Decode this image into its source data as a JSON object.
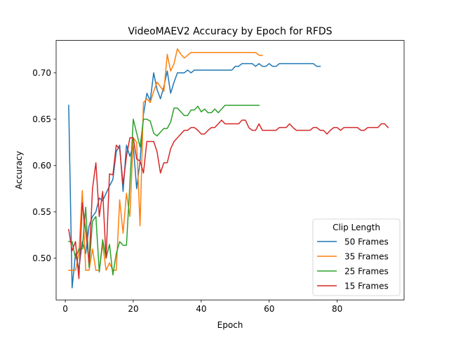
{
  "chart_data": {
    "type": "line",
    "title": "VideoMAEV2 Accuracy by Epoch for RFDS",
    "xlabel": "Epoch",
    "ylabel": "Accuracy",
    "xlim": [
      -2.7,
      99.7
    ],
    "ylim": [
      0.455,
      0.735
    ],
    "xticks": [
      0,
      20,
      40,
      60,
      80
    ],
    "yticks": [
      0.5,
      0.55,
      0.6,
      0.65,
      0.7
    ],
    "ytick_labels": [
      "0.50",
      "0.55",
      "0.60",
      "0.65",
      "0.70"
    ],
    "grid": false,
    "legend": {
      "title": "Clip Length",
      "placement": "lower-right"
    },
    "series": [
      {
        "name": "50 Frames",
        "color": "#1f77b4",
        "x": [
          1,
          2,
          3,
          4,
          5,
          6,
          7,
          8,
          9,
          10,
          11,
          12,
          13,
          14,
          15,
          16,
          17,
          18,
          19,
          20,
          21,
          22,
          23,
          24,
          25,
          26,
          27,
          28,
          29,
          30,
          31,
          32,
          33,
          34,
          35,
          36,
          37,
          38,
          39,
          40,
          41,
          42,
          43,
          44,
          45,
          46,
          47,
          48,
          49,
          50,
          51,
          52,
          53,
          54,
          55,
          56,
          57,
          58,
          59,
          60,
          61,
          62,
          63,
          64,
          65,
          66,
          67,
          68,
          69,
          70,
          71,
          72,
          73,
          74,
          75
        ],
        "y": [
          0.665,
          0.468,
          0.505,
          0.488,
          0.518,
          0.505,
          0.535,
          0.545,
          0.55,
          0.565,
          0.562,
          0.57,
          0.578,
          0.585,
          0.615,
          0.622,
          0.572,
          0.622,
          0.61,
          0.622,
          0.575,
          0.605,
          0.655,
          0.678,
          0.67,
          0.7,
          0.682,
          0.672,
          0.685,
          0.702,
          0.678,
          0.69,
          0.7,
          0.7,
          0.7,
          0.703,
          0.7,
          0.703,
          0.703,
          0.703,
          0.703,
          0.703,
          0.703,
          0.703,
          0.703,
          0.703,
          0.703,
          0.703,
          0.703,
          0.707,
          0.707,
          0.71,
          0.71,
          0.71,
          0.71,
          0.707,
          0.71,
          0.707,
          0.707,
          0.71,
          0.707,
          0.707,
          0.71,
          0.71,
          0.71,
          0.71,
          0.71,
          0.71,
          0.71,
          0.71,
          0.71,
          0.71,
          0.71,
          0.707,
          0.707
        ]
      },
      {
        "name": "35 Frames",
        "color": "#ff7f0e",
        "x": [
          1,
          2,
          3,
          4,
          5,
          6,
          7,
          8,
          9,
          10,
          11,
          12,
          13,
          14,
          15,
          16,
          17,
          18,
          19,
          20,
          21,
          22,
          23,
          24,
          25,
          26,
          27,
          28,
          29,
          30,
          31,
          32,
          33,
          34,
          35,
          36,
          37,
          38,
          39,
          40,
          41,
          42,
          43,
          44,
          45,
          46,
          47,
          48,
          49,
          50,
          51,
          52,
          53,
          54,
          55,
          56,
          57,
          58
        ],
        "y": [
          0.487,
          0.487,
          0.487,
          0.505,
          0.573,
          0.487,
          0.487,
          0.51,
          0.487,
          0.487,
          0.515,
          0.487,
          0.495,
          0.487,
          0.487,
          0.563,
          0.527,
          0.57,
          0.545,
          0.63,
          0.625,
          0.535,
          0.668,
          0.672,
          0.668,
          0.68,
          0.69,
          0.685,
          0.68,
          0.72,
          0.702,
          0.71,
          0.726,
          0.72,
          0.716,
          0.719,
          0.722,
          0.722,
          0.722,
          0.722,
          0.722,
          0.722,
          0.722,
          0.722,
          0.722,
          0.722,
          0.722,
          0.722,
          0.722,
          0.722,
          0.722,
          0.722,
          0.722,
          0.722,
          0.722,
          0.722,
          0.719,
          0.719
        ]
      },
      {
        "name": "25 Frames",
        "color": "#2ca02c",
        "x": [
          1,
          2,
          3,
          4,
          5,
          6,
          7,
          8,
          9,
          10,
          11,
          12,
          13,
          14,
          15,
          16,
          17,
          18,
          19,
          20,
          21,
          22,
          23,
          24,
          25,
          26,
          27,
          28,
          29,
          30,
          31,
          32,
          33,
          34,
          35,
          36,
          37,
          38,
          39,
          40,
          41,
          42,
          43,
          44,
          45,
          46,
          47,
          48,
          49,
          50,
          51,
          52,
          53,
          54,
          55,
          56,
          57
        ],
        "y": [
          0.518,
          0.518,
          0.5,
          0.51,
          0.51,
          0.555,
          0.49,
          0.54,
          0.545,
          0.485,
          0.52,
          0.5,
          0.515,
          0.482,
          0.505,
          0.518,
          0.514,
          0.514,
          0.58,
          0.65,
          0.635,
          0.62,
          0.65,
          0.65,
          0.648,
          0.635,
          0.632,
          0.636,
          0.64,
          0.64,
          0.647,
          0.662,
          0.662,
          0.658,
          0.654,
          0.654,
          0.66,
          0.66,
          0.664,
          0.658,
          0.661,
          0.657,
          0.657,
          0.661,
          0.657,
          0.661,
          0.665,
          0.665,
          0.665,
          0.665,
          0.665,
          0.665,
          0.665,
          0.665,
          0.665,
          0.665,
          0.665
        ]
      },
      {
        "name": "15 Frames",
        "color": "#d62728",
        "x": [
          1,
          2,
          3,
          4,
          5,
          6,
          7,
          8,
          9,
          10,
          11,
          12,
          13,
          14,
          15,
          16,
          17,
          18,
          19,
          20,
          21,
          22,
          23,
          24,
          25,
          26,
          27,
          28,
          29,
          30,
          31,
          32,
          33,
          34,
          35,
          36,
          37,
          38,
          39,
          40,
          41,
          42,
          43,
          44,
          45,
          46,
          47,
          48,
          49,
          50,
          51,
          52,
          53,
          54,
          55,
          56,
          57,
          58,
          59,
          60,
          61,
          62,
          63,
          64,
          65,
          66,
          67,
          68,
          69,
          70,
          71,
          72,
          73,
          74,
          75,
          76,
          77,
          78,
          79,
          80,
          81,
          82,
          83,
          84,
          85,
          86,
          87,
          88,
          89,
          90,
          91,
          92,
          93,
          94,
          95
        ],
        "y": [
          0.531,
          0.508,
          0.518,
          0.478,
          0.56,
          0.53,
          0.495,
          0.575,
          0.603,
          0.545,
          0.572,
          0.5,
          0.591,
          0.59,
          0.622,
          0.618,
          0.58,
          0.61,
          0.63,
          0.63,
          0.607,
          0.605,
          0.592,
          0.626,
          0.626,
          0.626,
          0.615,
          0.592,
          0.603,
          0.603,
          0.618,
          0.626,
          0.63,
          0.634,
          0.638,
          0.638,
          0.641,
          0.641,
          0.638,
          0.634,
          0.634,
          0.638,
          0.641,
          0.641,
          0.645,
          0.649,
          0.645,
          0.645,
          0.645,
          0.645,
          0.645,
          0.649,
          0.649,
          0.641,
          0.638,
          0.638,
          0.645,
          0.638,
          0.638,
          0.638,
          0.638,
          0.638,
          0.641,
          0.641,
          0.641,
          0.645,
          0.641,
          0.638,
          0.638,
          0.638,
          0.638,
          0.638,
          0.641,
          0.641,
          0.638,
          0.638,
          0.634,
          0.638,
          0.641,
          0.641,
          0.638,
          0.641,
          0.641,
          0.641,
          0.641,
          0.641,
          0.638,
          0.638,
          0.641,
          0.641,
          0.641,
          0.641,
          0.645,
          0.645,
          0.641
        ]
      }
    ]
  }
}
